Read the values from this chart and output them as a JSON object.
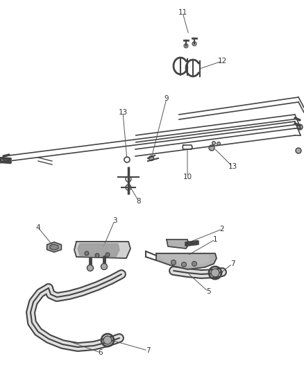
{
  "bg_color": "#ffffff",
  "label_color": "#333333",
  "line_color": "#444444",
  "part_color": "#666666",
  "part_fill": "#cccccc",
  "part_fill2": "#aaaaaa",
  "hose_fill": "#e8e8e8",
  "figsize": [
    4.38,
    5.33
  ],
  "dpi": 100,
  "label_fs": 7.5,
  "leader_lw": 0.7,
  "leader_color": "#555555"
}
